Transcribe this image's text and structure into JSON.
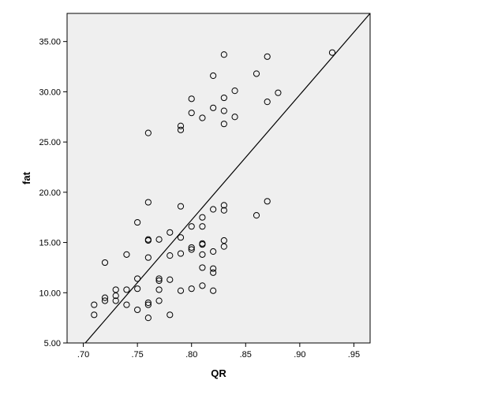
{
  "chart_data": {
    "type": "scatter",
    "title": "",
    "xlabel": "QR",
    "ylabel": "fat",
    "xlim": [
      0.685,
      0.965
    ],
    "ylim": [
      5.0,
      37.8
    ],
    "xticks": [
      0.7,
      0.75,
      0.8,
      0.85,
      0.9,
      0.95
    ],
    "xtick_labels": [
      ".70",
      ".75",
      ".80",
      ".85",
      ".90",
      ".95"
    ],
    "yticks": [
      5.0,
      10.0,
      15.0,
      20.0,
      25.0,
      30.0,
      35.0
    ],
    "ytick_labels": [
      "5.00",
      "10.00",
      "15.00",
      "20.00",
      "25.00",
      "30.00",
      "35.00"
    ],
    "grid": false,
    "plot_background": "#efefef",
    "marker_color": "#000000",
    "fit_line": {
      "x": [
        0.685,
        0.965
      ],
      "y": [
        2.9,
        37.8
      ]
    },
    "points": [
      {
        "x": 0.71,
        "y": 7.8
      },
      {
        "x": 0.71,
        "y": 8.8
      },
      {
        "x": 0.72,
        "y": 9.2
      },
      {
        "x": 0.72,
        "y": 9.5
      },
      {
        "x": 0.72,
        "y": 13.0
      },
      {
        "x": 0.73,
        "y": 9.2
      },
      {
        "x": 0.73,
        "y": 9.7
      },
      {
        "x": 0.73,
        "y": 10.3
      },
      {
        "x": 0.74,
        "y": 8.8
      },
      {
        "x": 0.74,
        "y": 10.3
      },
      {
        "x": 0.74,
        "y": 13.8
      },
      {
        "x": 0.75,
        "y": 8.3
      },
      {
        "x": 0.75,
        "y": 10.4
      },
      {
        "x": 0.75,
        "y": 11.4
      },
      {
        "x": 0.75,
        "y": 17.0
      },
      {
        "x": 0.76,
        "y": 7.5
      },
      {
        "x": 0.76,
        "y": 8.8
      },
      {
        "x": 0.76,
        "y": 9.0
      },
      {
        "x": 0.76,
        "y": 13.5
      },
      {
        "x": 0.76,
        "y": 15.2
      },
      {
        "x": 0.76,
        "y": 15.3
      },
      {
        "x": 0.76,
        "y": 19.0
      },
      {
        "x": 0.76,
        "y": 25.9
      },
      {
        "x": 0.77,
        "y": 9.2
      },
      {
        "x": 0.77,
        "y": 10.3
      },
      {
        "x": 0.77,
        "y": 11.2
      },
      {
        "x": 0.77,
        "y": 11.4
      },
      {
        "x": 0.77,
        "y": 15.3
      },
      {
        "x": 0.78,
        "y": 7.8
      },
      {
        "x": 0.78,
        "y": 11.3
      },
      {
        "x": 0.78,
        "y": 13.7
      },
      {
        "x": 0.78,
        "y": 16.0
      },
      {
        "x": 0.79,
        "y": 10.2
      },
      {
        "x": 0.79,
        "y": 13.9
      },
      {
        "x": 0.79,
        "y": 15.5
      },
      {
        "x": 0.79,
        "y": 18.6
      },
      {
        "x": 0.79,
        "y": 26.2
      },
      {
        "x": 0.79,
        "y": 26.6
      },
      {
        "x": 0.8,
        "y": 10.4
      },
      {
        "x": 0.8,
        "y": 14.3
      },
      {
        "x": 0.8,
        "y": 14.5
      },
      {
        "x": 0.8,
        "y": 16.6
      },
      {
        "x": 0.8,
        "y": 27.9
      },
      {
        "x": 0.8,
        "y": 29.3
      },
      {
        "x": 0.81,
        "y": 10.7
      },
      {
        "x": 0.81,
        "y": 12.5
      },
      {
        "x": 0.81,
        "y": 13.8
      },
      {
        "x": 0.81,
        "y": 14.8
      },
      {
        "x": 0.81,
        "y": 14.9
      },
      {
        "x": 0.81,
        "y": 16.6
      },
      {
        "x": 0.81,
        "y": 17.5
      },
      {
        "x": 0.81,
        "y": 27.4
      },
      {
        "x": 0.82,
        "y": 10.2
      },
      {
        "x": 0.82,
        "y": 12.0
      },
      {
        "x": 0.82,
        "y": 12.4
      },
      {
        "x": 0.82,
        "y": 14.1
      },
      {
        "x": 0.82,
        "y": 18.3
      },
      {
        "x": 0.82,
        "y": 28.4
      },
      {
        "x": 0.82,
        "y": 31.6
      },
      {
        "x": 0.83,
        "y": 14.6
      },
      {
        "x": 0.83,
        "y": 15.2
      },
      {
        "x": 0.83,
        "y": 18.2
      },
      {
        "x": 0.83,
        "y": 18.7
      },
      {
        "x": 0.83,
        "y": 26.8
      },
      {
        "x": 0.83,
        "y": 28.1
      },
      {
        "x": 0.83,
        "y": 29.4
      },
      {
        "x": 0.83,
        "y": 33.7
      },
      {
        "x": 0.84,
        "y": 27.5
      },
      {
        "x": 0.84,
        "y": 30.1
      },
      {
        "x": 0.86,
        "y": 17.7
      },
      {
        "x": 0.86,
        "y": 31.8
      },
      {
        "x": 0.87,
        "y": 19.1
      },
      {
        "x": 0.87,
        "y": 29.0
      },
      {
        "x": 0.87,
        "y": 33.5
      },
      {
        "x": 0.88,
        "y": 29.9
      },
      {
        "x": 0.93,
        "y": 33.9
      }
    ]
  }
}
